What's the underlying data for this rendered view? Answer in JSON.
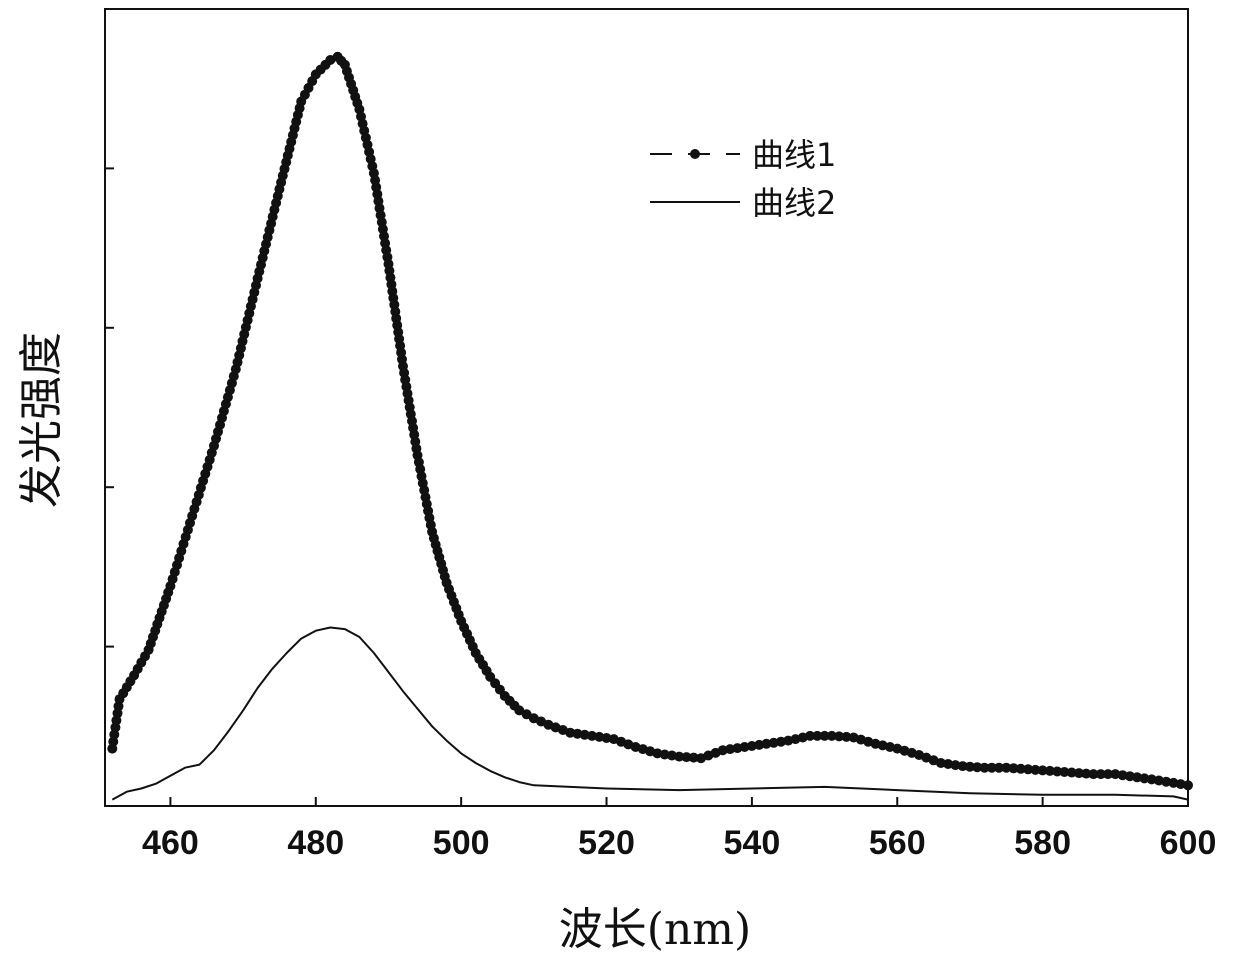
{
  "chart_data": {
    "type": "line",
    "title": "",
    "xlabel": "波长(nm)",
    "ylabel": "发光强度",
    "xlim": [
      451,
      600
    ],
    "ylim": [
      0,
      5.0
    ],
    "x_ticks": [
      460,
      480,
      500,
      520,
      540,
      560,
      580,
      600
    ],
    "y_tick_values": [
      1,
      2,
      3,
      4,
      5
    ],
    "y_tick_labels_shown": false,
    "grid": false,
    "legend_position": "top-right",
    "series": [
      {
        "name": "曲线1",
        "style": "line-with-markers",
        "color": "#111111",
        "x": [
          452,
          453,
          455,
          457,
          460,
          463,
          466,
          469,
          472,
          475,
          478,
          480,
          482,
          483,
          484,
          486,
          488,
          490,
          492,
          494,
          496,
          498,
          500,
          502,
          504,
          506,
          508,
          510,
          512,
          515,
          518,
          521,
          524,
          527,
          530,
          533,
          536,
          539,
          542,
          545,
          548,
          551,
          554,
          557,
          560,
          563,
          566,
          569,
          572,
          575,
          578,
          581,
          584,
          587,
          590,
          593,
          596,
          600
        ],
        "y": [
          0.36,
          0.67,
          0.82,
          0.98,
          1.38,
          1.82,
          2.26,
          2.74,
          3.31,
          3.87,
          4.42,
          4.59,
          4.68,
          4.7,
          4.65,
          4.37,
          3.97,
          3.4,
          2.76,
          2.2,
          1.72,
          1.4,
          1.16,
          0.96,
          0.81,
          0.69,
          0.6,
          0.55,
          0.51,
          0.46,
          0.44,
          0.42,
          0.37,
          0.33,
          0.31,
          0.3,
          0.35,
          0.37,
          0.39,
          0.41,
          0.44,
          0.44,
          0.43,
          0.39,
          0.36,
          0.32,
          0.27,
          0.25,
          0.24,
          0.24,
          0.23,
          0.22,
          0.21,
          0.2,
          0.2,
          0.18,
          0.16,
          0.13
        ]
      },
      {
        "name": "曲线2",
        "style": "line",
        "color": "#111111",
        "x": [
          452,
          454,
          456,
          458,
          460,
          462,
          464,
          466,
          468,
          470,
          472,
          474,
          476,
          478,
          480,
          482,
          484,
          486,
          488,
          490,
          492,
          494,
          496,
          498,
          500,
          502,
          504,
          506,
          508,
          510,
          515,
          520,
          530,
          540,
          550,
          560,
          570,
          580,
          590,
          598,
          600
        ],
        "y": [
          0.04,
          0.09,
          0.11,
          0.14,
          0.19,
          0.24,
          0.26,
          0.35,
          0.47,
          0.6,
          0.74,
          0.86,
          0.96,
          1.05,
          1.1,
          1.12,
          1.11,
          1.06,
          0.96,
          0.84,
          0.72,
          0.61,
          0.5,
          0.41,
          0.33,
          0.27,
          0.22,
          0.18,
          0.15,
          0.13,
          0.12,
          0.11,
          0.1,
          0.11,
          0.12,
          0.1,
          0.08,
          0.07,
          0.07,
          0.06,
          0.04
        ]
      }
    ]
  }
}
